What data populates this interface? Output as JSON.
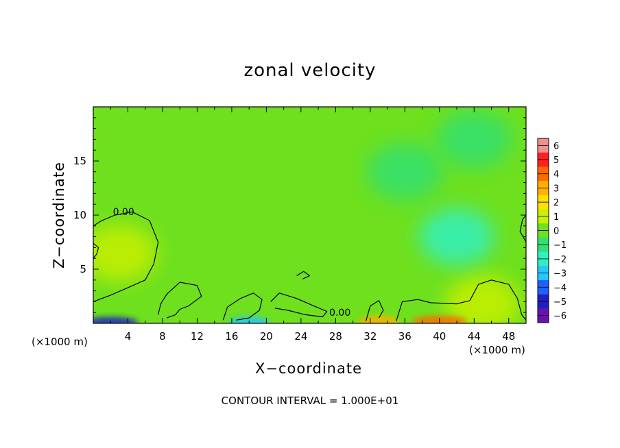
{
  "chart_data": {
    "type": "heatmap",
    "title": "zonal velocity",
    "xlabel": "X−coordinate",
    "ylabel": "Z−coordinate",
    "x_unit_left": "(×1000 m)",
    "x_unit_right": "(×1000 m)",
    "footer": "CONTOUR INTERVAL = 1.000E+01",
    "xlim": [
      0,
      50
    ],
    "ylim": [
      0,
      20
    ],
    "x_ticks": [
      4,
      8,
      12,
      16,
      20,
      24,
      28,
      32,
      36,
      40,
      44,
      48
    ],
    "y_ticks": [
      5,
      10,
      15
    ],
    "colorbar": {
      "ticks": [
        "6",
        "5",
        "4",
        "3",
        "2",
        "1",
        "0",
        "−1",
        "−2",
        "−3",
        "−4",
        "−5",
        "−6"
      ],
      "colors": [
        "#f09090",
        "#ff2020",
        "#ff6a00",
        "#ffb000",
        "#ffe000",
        "#c8f000",
        "#6ee01e",
        "#30e070",
        "#30f0c0",
        "#24c8ff",
        "#2060ff",
        "#2020c0",
        "#6a12b0"
      ]
    },
    "contour_labels": [
      {
        "text": "0.00",
        "x": 3.5,
        "y": 10
      },
      {
        "text": "0.00",
        "x": 28.5,
        "y": 0.7
      }
    ],
    "field": {
      "background_value": 0.3,
      "blobs": [
        {
          "x": 3,
          "z": 6.5,
          "value": 1.2
        },
        {
          "x": 45,
          "z": 1.8,
          "value": 1.3
        },
        {
          "x": 42,
          "z": 8,
          "value": -2.3
        },
        {
          "x": 36,
          "z": 14,
          "value": -1.3
        },
        {
          "x": 44,
          "z": 17,
          "value": -1.2
        },
        {
          "x": 40,
          "z": 0.2,
          "value": 4.5
        },
        {
          "x": 33,
          "z": 0.2,
          "value": 3.0
        },
        {
          "x": 2,
          "z": 0.1,
          "value": -5.0
        },
        {
          "x": 18,
          "z": 0.1,
          "value": -3.0
        }
      ]
    }
  }
}
